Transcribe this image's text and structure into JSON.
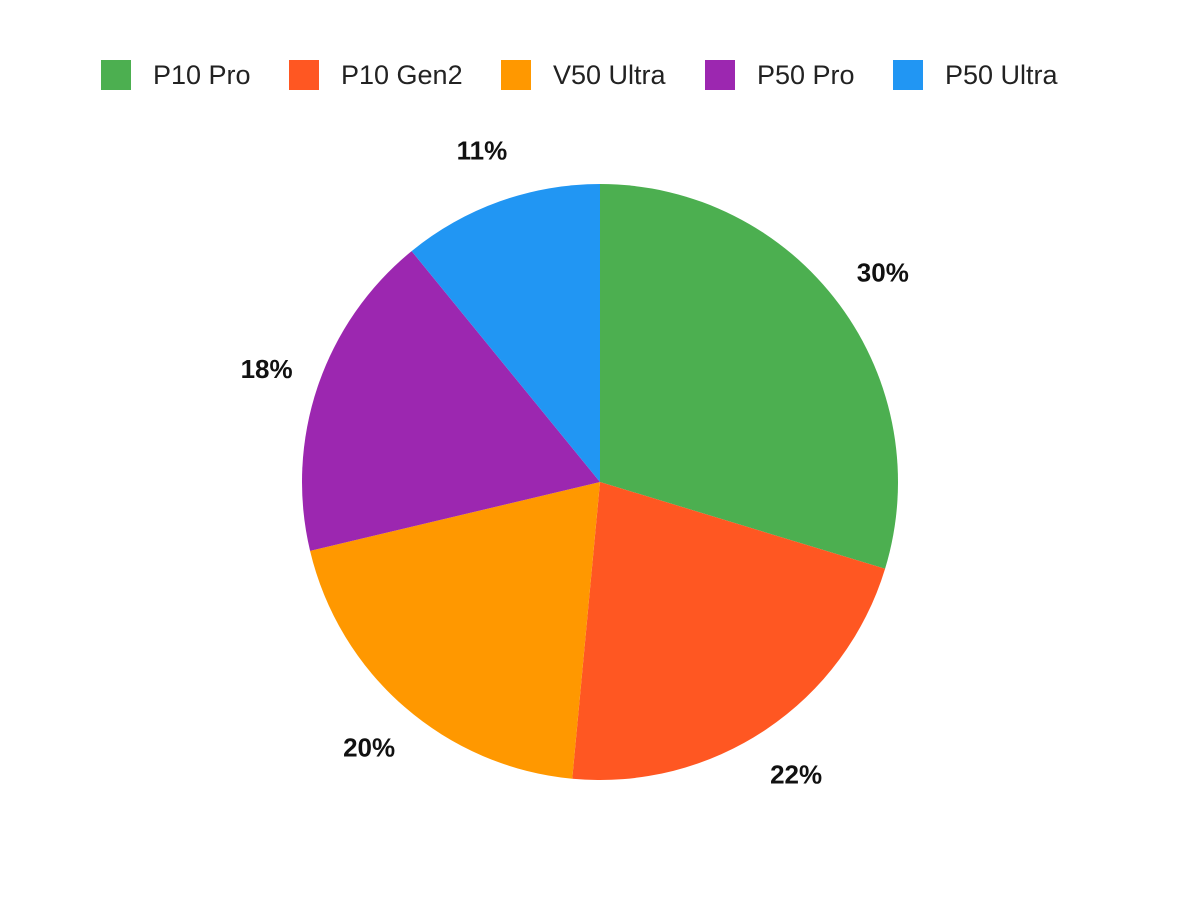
{
  "chart_data": {
    "type": "pie",
    "title": "",
    "legend_position": "top",
    "start_angle": "12 o'clock",
    "direction": "clockwise",
    "slices": [
      {
        "label": "P10 Pro",
        "value": 30,
        "display": "30%",
        "color": "#4CAF50"
      },
      {
        "label": "P10 Gen2",
        "value": 22,
        "display": "22%",
        "color": "#FF5722"
      },
      {
        "label": "V50 Ultra",
        "value": 20,
        "display": "20%",
        "color": "#FF9800"
      },
      {
        "label": "P50 Pro",
        "value": 18,
        "display": "18%",
        "color": "#9C27B0"
      },
      {
        "label": "P50 Ultra",
        "value": 11,
        "display": "11%",
        "color": "#2196F3"
      }
    ]
  }
}
